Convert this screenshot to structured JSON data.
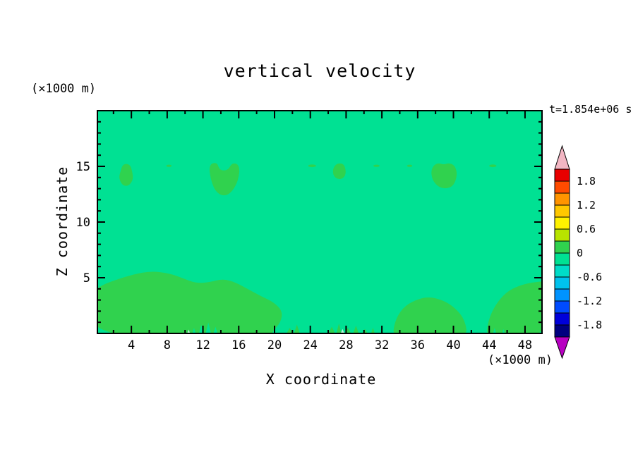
{
  "chart_data": {
    "type": "heatmap",
    "title": "vertical velocity",
    "time_annotation": "t=1.854e+06 s",
    "x_label": "X coordinate",
    "y_label": "Z coordinate",
    "x_unit": "(×1000 m)",
    "y_unit": "(×1000 m)",
    "x_range": [
      0.2,
      49.9
    ],
    "y_range": [
      0,
      20
    ],
    "x_ticks_major": [
      4,
      8,
      12,
      16,
      20,
      24,
      28,
      32,
      36,
      40,
      44,
      48
    ],
    "x_tick_minor_step": 2,
    "y_ticks_major": [
      5,
      10,
      15
    ],
    "y_tick_minor_step": 1,
    "grid": false,
    "legend_position": "right-colorbar",
    "colorbar": {
      "labels": [
        "1.8",
        "1.2",
        "0.6",
        "0",
        "-0.6",
        "-1.2",
        "-1.8"
      ],
      "level_step": 0.3,
      "top_value": 2.1,
      "bottom_value": -2.1,
      "segment_colors_top_to_bottom": [
        "#e80000",
        "#ff4b00",
        "#ff9400",
        "#ffc800",
        "#fff200",
        "#b8e400",
        "#30d24e",
        "#00e193",
        "#00dcc8",
        "#00c2ee",
        "#0093ff",
        "#004bff",
        "#0000da",
        "#000080"
      ],
      "arrow_top_color": "#f2b6c3",
      "arrow_bottom_color": "#b800c2"
    },
    "field_colors": {
      "background_band": "#00e193",
      "positive_band": "#30d24e",
      "light_speck": "#bdf2d8"
    },
    "band_value_ranges": {
      "background_band": [
        -0.3,
        0
      ],
      "positive_band": [
        0,
        0.3
      ]
    },
    "regions": [
      {
        "name": "bottom-left-updraft",
        "points": [
          [
            -0.5,
            -0.5
          ],
          [
            -0.5,
            3.6
          ],
          [
            0.6,
            4.3
          ],
          [
            2.2,
            4.8
          ],
          [
            4.2,
            5.3
          ],
          [
            6.2,
            5.6
          ],
          [
            8.2,
            5.4
          ],
          [
            9.6,
            5.0
          ],
          [
            11.2,
            4.5
          ],
          [
            12.8,
            4.6
          ],
          [
            14.2,
            4.9
          ],
          [
            15.6,
            4.6
          ],
          [
            17.2,
            3.9
          ],
          [
            18.6,
            3.3
          ],
          [
            19.9,
            2.8
          ],
          [
            20.9,
            2.0
          ],
          [
            20.7,
            1.0
          ],
          [
            19.9,
            0.3
          ],
          [
            19.4,
            -0.5
          ]
        ]
      },
      {
        "name": "bottom-middle-updraft",
        "points": [
          [
            33.2,
            -0.5
          ],
          [
            33.4,
            1.0
          ],
          [
            34.3,
            2.3
          ],
          [
            35.7,
            3.0
          ],
          [
            37.2,
            3.3
          ],
          [
            38.8,
            3.0
          ],
          [
            40.2,
            2.3
          ],
          [
            41.3,
            1.2
          ],
          [
            41.6,
            -0.5
          ]
        ]
      },
      {
        "name": "bottom-right-updraft",
        "points": [
          [
            43.6,
            -0.5
          ],
          [
            43.9,
            1.2
          ],
          [
            44.7,
            2.6
          ],
          [
            45.9,
            3.7
          ],
          [
            47.3,
            4.3
          ],
          [
            48.9,
            4.6
          ],
          [
            50.6,
            4.7
          ],
          [
            50.6,
            -0.5
          ]
        ]
      },
      {
        "name": "cloud-blob-1",
        "points": [
          [
            2.9,
            13.4
          ],
          [
            2.6,
            14.0
          ],
          [
            2.8,
            14.6
          ],
          [
            3.0,
            15.1
          ],
          [
            3.4,
            15.25
          ],
          [
            3.9,
            15.1
          ],
          [
            4.1,
            14.5
          ],
          [
            4.2,
            13.9
          ],
          [
            3.9,
            13.4
          ],
          [
            3.4,
            13.2
          ]
        ]
      },
      {
        "name": "cloud-blob-2",
        "points": [
          [
            12.8,
            14.2
          ],
          [
            12.7,
            14.9
          ],
          [
            13.0,
            15.3
          ],
          [
            13.6,
            15.3
          ],
          [
            13.8,
            14.8
          ],
          [
            14.2,
            14.6
          ],
          [
            14.8,
            14.7
          ],
          [
            15.1,
            15.1
          ],
          [
            15.4,
            15.3
          ],
          [
            15.9,
            15.2
          ],
          [
            16.1,
            14.7
          ],
          [
            16.0,
            14.1
          ],
          [
            15.8,
            13.5
          ],
          [
            15.3,
            12.8
          ],
          [
            14.7,
            12.4
          ],
          [
            14.0,
            12.4
          ],
          [
            13.4,
            12.8
          ],
          [
            13.0,
            13.5
          ]
        ]
      },
      {
        "name": "cloud-blob-3",
        "points": [
          [
            26.6,
            14.1
          ],
          [
            26.5,
            14.7
          ],
          [
            26.8,
            15.15
          ],
          [
            27.3,
            15.3
          ],
          [
            27.8,
            15.15
          ],
          [
            28.0,
            14.5
          ],
          [
            27.8,
            14.0
          ],
          [
            27.2,
            13.8
          ]
        ]
      },
      {
        "name": "cloud-blob-4",
        "points": [
          [
            37.6,
            13.9
          ],
          [
            37.5,
            14.6
          ],
          [
            37.8,
            15.1
          ],
          [
            38.3,
            15.3
          ],
          [
            38.9,
            15.15
          ],
          [
            39.5,
            15.3
          ],
          [
            40.1,
            15.1
          ],
          [
            40.4,
            14.5
          ],
          [
            40.3,
            13.8
          ],
          [
            39.9,
            13.2
          ],
          [
            39.2,
            13.0
          ],
          [
            38.5,
            13.1
          ],
          [
            38.0,
            13.4
          ]
        ]
      }
    ],
    "top_dashes": [
      {
        "x": 8.2,
        "z": 15.05,
        "rx": 0.3,
        "rz": 0.1
      },
      {
        "x": 24.2,
        "z": 15.05,
        "rx": 0.45,
        "rz": 0.12
      },
      {
        "x": 31.4,
        "z": 15.05,
        "rx": 0.35,
        "rz": 0.1
      },
      {
        "x": 35.1,
        "z": 15.05,
        "rx": 0.3,
        "rz": 0.1
      },
      {
        "x": 44.4,
        "z": 15.05,
        "rx": 0.4,
        "rz": 0.12
      }
    ],
    "bottom_specks": [
      {
        "x": 21.7,
        "w": 0.5,
        "h": 0.5
      },
      {
        "x": 22.5,
        "w": 0.4,
        "h": 0.8
      },
      {
        "x": 26.4,
        "w": 0.5,
        "h": 0.6
      },
      {
        "x": 27.2,
        "w": 0.35,
        "h": 0.9
      },
      {
        "x": 28.2,
        "w": 0.5,
        "h": 0.5
      },
      {
        "x": 29.1,
        "w": 0.4,
        "h": 0.7
      },
      {
        "x": 30.1,
        "w": 0.45,
        "h": 0.4
      },
      {
        "x": 31.0,
        "w": 0.3,
        "h": 0.5
      }
    ],
    "bottom_notches": [
      {
        "x": 11.0,
        "w": 0.25,
        "h": 0.5
      },
      {
        "x": 11.8,
        "w": 0.3,
        "h": 0.8
      },
      {
        "x": 12.6,
        "w": 0.35,
        "h": 1.0
      },
      {
        "x": 13.4,
        "w": 0.3,
        "h": 0.6
      },
      {
        "x": 44.6,
        "w": 0.25,
        "h": 0.5
      },
      {
        "x": 45.6,
        "w": 0.2,
        "h": 0.4
      }
    ],
    "light_specks": [
      {
        "x": 27.6,
        "w": 0.3,
        "h": 0.4
      },
      {
        "x": 10.4,
        "w": 0.25,
        "h": 0.35
      }
    ]
  }
}
